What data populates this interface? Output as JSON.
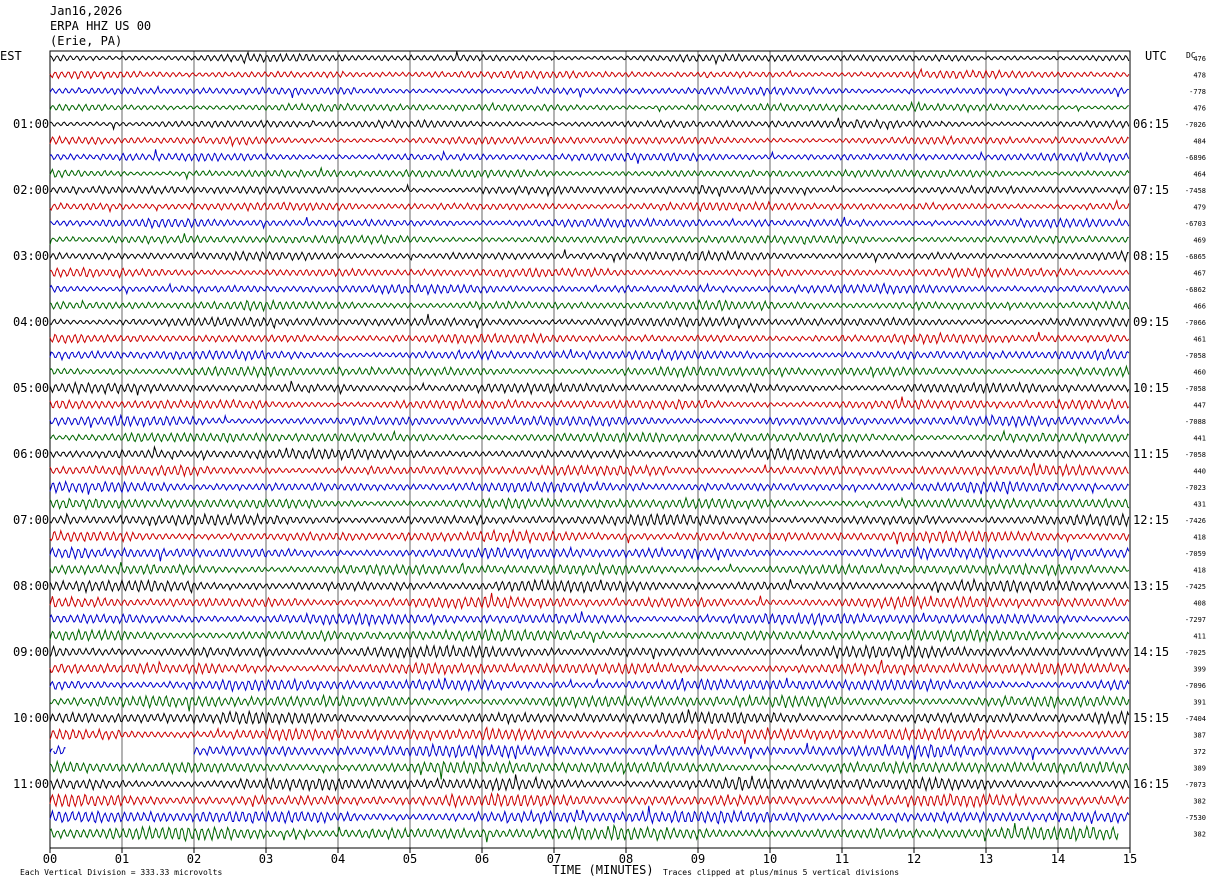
{
  "header": {
    "date": "Jan16,2026",
    "station": "ERPA HHZ US 00",
    "location": "(Erie, PA)"
  },
  "labels": {
    "left_timezone": "EST",
    "right_timezone": "UTC",
    "dc_label": "DC",
    "x_axis_title": "TIME (MINUTES)",
    "scale_note": "Each Vertical Division =  333.33 microvolts",
    "clip_note": "Traces clipped at plus/minus 5 vertical divisions"
  },
  "colors": {
    "trace_cycle": [
      "#000000",
      "#cc0000",
      "#0000cc",
      "#006600"
    ],
    "grid": "#000000"
  },
  "chart_data": {
    "type": "line",
    "title": "",
    "xlabel": "TIME (MINUTES)",
    "ylabel": "",
    "xlim": [
      0,
      15
    ],
    "x_ticks": [
      "00",
      "01",
      "02",
      "03",
      "04",
      "05",
      "06",
      "07",
      "08",
      "09",
      "10",
      "11",
      "12",
      "13",
      "14",
      "15"
    ],
    "rows": 48,
    "rows_per_hour": 4,
    "left_hour_labels": [
      "01:00",
      "02:00",
      "03:00",
      "04:00",
      "05:00",
      "06:00",
      "07:00",
      "08:00",
      "09:00",
      "10:00",
      "11:00"
    ],
    "right_hour_labels": [
      "06:15",
      "07:15",
      "08:15",
      "09:15",
      "10:15",
      "11:15",
      "12:15",
      "13:15",
      "14:15",
      "15:15",
      "16:15"
    ],
    "dc_offsets": [
      "476",
      "478",
      "-778",
      "476",
      "-7026",
      "484",
      "-6896",
      "464",
      "-7458",
      "479",
      "-6703",
      "469",
      "-6865",
      "467",
      "-6862",
      "466",
      "-7066",
      "461",
      "-7058",
      "460",
      "-7058",
      "447",
      "-7088",
      "441",
      "-7058",
      "440",
      "-7023",
      "431",
      "-7426",
      "418",
      "-7059",
      "418",
      "-7425",
      "408",
      "-7297",
      "411",
      "-7025",
      "399",
      "-7096",
      "391",
      "-7404",
      "387",
      "372",
      "389",
      "-7073",
      "382",
      "-7530",
      "382"
    ],
    "gap": {
      "row": 42,
      "from_minute": 0.22,
      "to_minute": 2.0
    },
    "last_row_end_minute": 14.85
  }
}
